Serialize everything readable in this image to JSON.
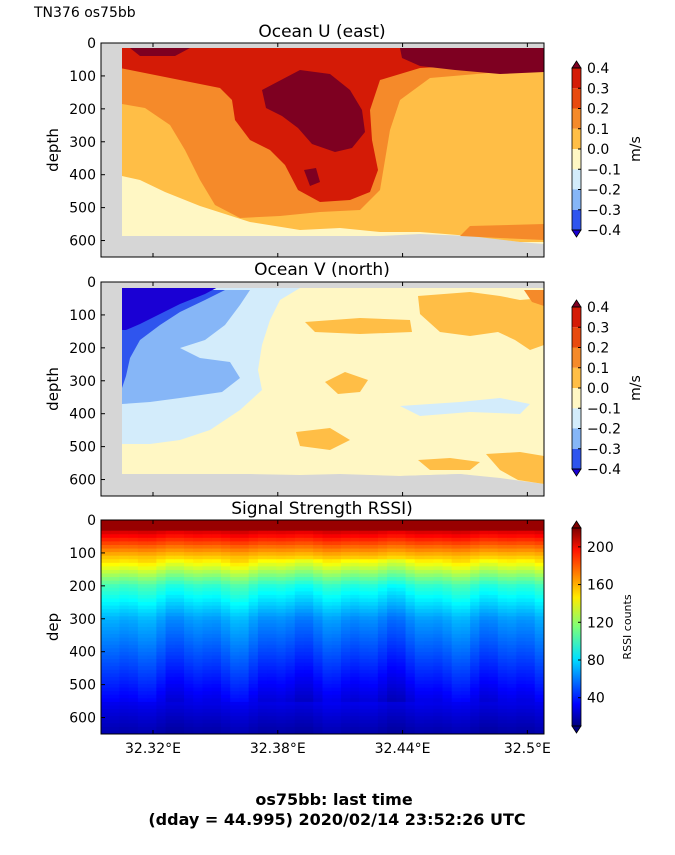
{
  "figure": {
    "corner_label": "TN376 os75bb",
    "footer_line1": "os75bb: last time",
    "footer_line2": "(dday = 44.995) 2020/02/14 23:52:26 UTC"
  },
  "chart_data": [
    {
      "type": "heatmap",
      "title": "Ocean U (east)",
      "ylabel": "depth",
      "xlabel": "",
      "ylim": [
        650,
        0
      ],
      "yticks": [
        "0",
        "100",
        "200",
        "300",
        "400",
        "500",
        "600"
      ],
      "yvalues": [
        0,
        100,
        200,
        300,
        400,
        500,
        600
      ],
      "xlim": [
        32.295,
        32.508
      ],
      "xticks": [
        32.32,
        32.38,
        32.44,
        32.5
      ],
      "xtick_labels": [],
      "colorbar": {
        "label": "m/s",
        "ticks": [
          "0.4",
          "0.3",
          "0.2",
          "0.1",
          "0.0",
          "−0.1",
          "−0.2",
          "−0.3",
          "−0.4"
        ],
        "tick_values": [
          0.4,
          0.3,
          0.2,
          0.1,
          0.0,
          -0.1,
          -0.2,
          -0.3,
          -0.4
        ],
        "range": [
          -0.4,
          0.4
        ],
        "colors": [
          "#1a00d4",
          "#2f55ee",
          "#86b6f7",
          "#d3ecfb",
          "#fff7c4",
          "#ffbe46",
          "#f58a2a",
          "#e84a0f",
          "#d41b06",
          "#7e0021"
        ]
      },
      "no_data_color": "#d6d6d6"
    },
    {
      "type": "heatmap",
      "title": "Ocean V (north)",
      "ylabel": "depth",
      "xlabel": "",
      "ylim": [
        650,
        0
      ],
      "yticks": [
        "0",
        "100",
        "200",
        "300",
        "400",
        "500",
        "600"
      ],
      "yvalues": [
        0,
        100,
        200,
        300,
        400,
        500,
        600
      ],
      "xlim": [
        32.295,
        32.508
      ],
      "xticks": [
        32.32,
        32.38,
        32.44,
        32.5
      ],
      "xtick_labels": [],
      "colorbar": {
        "label": "m/s",
        "ticks": [
          "0.4",
          "0.3",
          "0.2",
          "0.1",
          "0.0",
          "−0.1",
          "−0.2",
          "−0.3",
          "−0.4"
        ],
        "tick_values": [
          0.4,
          0.3,
          0.2,
          0.1,
          0.0,
          -0.1,
          -0.2,
          -0.3,
          -0.4
        ],
        "range": [
          -0.4,
          0.4
        ],
        "colors": [
          "#1a00d4",
          "#2f55ee",
          "#86b6f7",
          "#d3ecfb",
          "#fff7c4",
          "#ffbe46",
          "#f58a2a",
          "#e84a0f",
          "#d41b06",
          "#7e0021"
        ]
      },
      "no_data_color": "#d6d6d6"
    },
    {
      "type": "heatmap",
      "title": "Signal Strength RSSI)",
      "ylabel": "dep",
      "xlabel": "",
      "ylim": [
        650,
        0
      ],
      "yticks": [
        "0",
        "100",
        "200",
        "300",
        "400",
        "500",
        "600"
      ],
      "yvalues": [
        0,
        100,
        200,
        300,
        400,
        500,
        600
      ],
      "xlim": [
        32.295,
        32.508
      ],
      "xticks": [
        32.32,
        32.38,
        32.44,
        32.5
      ],
      "xtick_labels": [
        "32.32°E",
        "32.38°E",
        "32.44°E",
        "32.5°E"
      ],
      "colorbar": {
        "label": "RSSI counts",
        "ticks": [
          "200",
          "160",
          "120",
          "80",
          "40"
        ],
        "tick_values": [
          200,
          160,
          120,
          80,
          40
        ],
        "range": [
          10,
          220
        ]
      },
      "rssi_profile": {
        "depth": [
          30,
          100,
          200,
          300,
          400,
          500,
          600,
          650
        ],
        "rssi": [
          205,
          160,
          100,
          70,
          55,
          40,
          25,
          18
        ]
      }
    }
  ]
}
